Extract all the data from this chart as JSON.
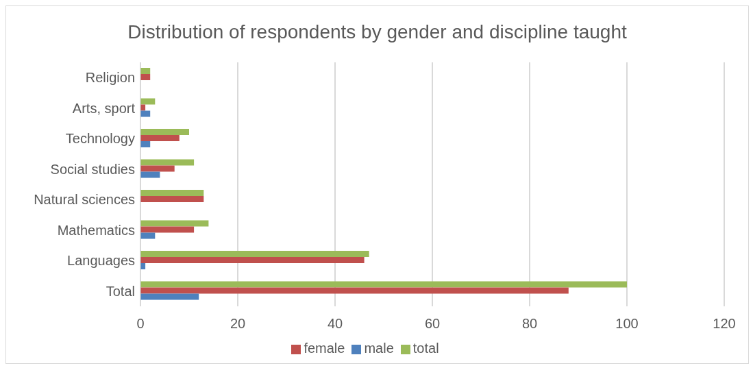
{
  "chart_data": {
    "type": "bar",
    "orientation": "horizontal",
    "title": "Distribution of respondents by gender and discipline taught",
    "categories": [
      "Religion",
      "Arts, sport",
      "Technology",
      "Social studies",
      "Natural sciences",
      "Mathematics",
      "Languages",
      "Total"
    ],
    "series": [
      {
        "name": "total",
        "color": "#9bbb59",
        "values": [
          2,
          3,
          10,
          11,
          13,
          14,
          47,
          100
        ]
      },
      {
        "name": "female",
        "color": "#c0504d",
        "values": [
          2,
          1,
          8,
          7,
          13,
          11,
          46,
          88
        ]
      },
      {
        "name": "male",
        "color": "#4f81bd",
        "values": [
          0,
          2,
          2,
          4,
          0,
          3,
          1,
          12
        ]
      }
    ],
    "xlim": [
      0,
      120
    ],
    "xticks": [
      0,
      20,
      40,
      60,
      80,
      100,
      120
    ],
    "grid": "x",
    "legend": "bottom"
  }
}
